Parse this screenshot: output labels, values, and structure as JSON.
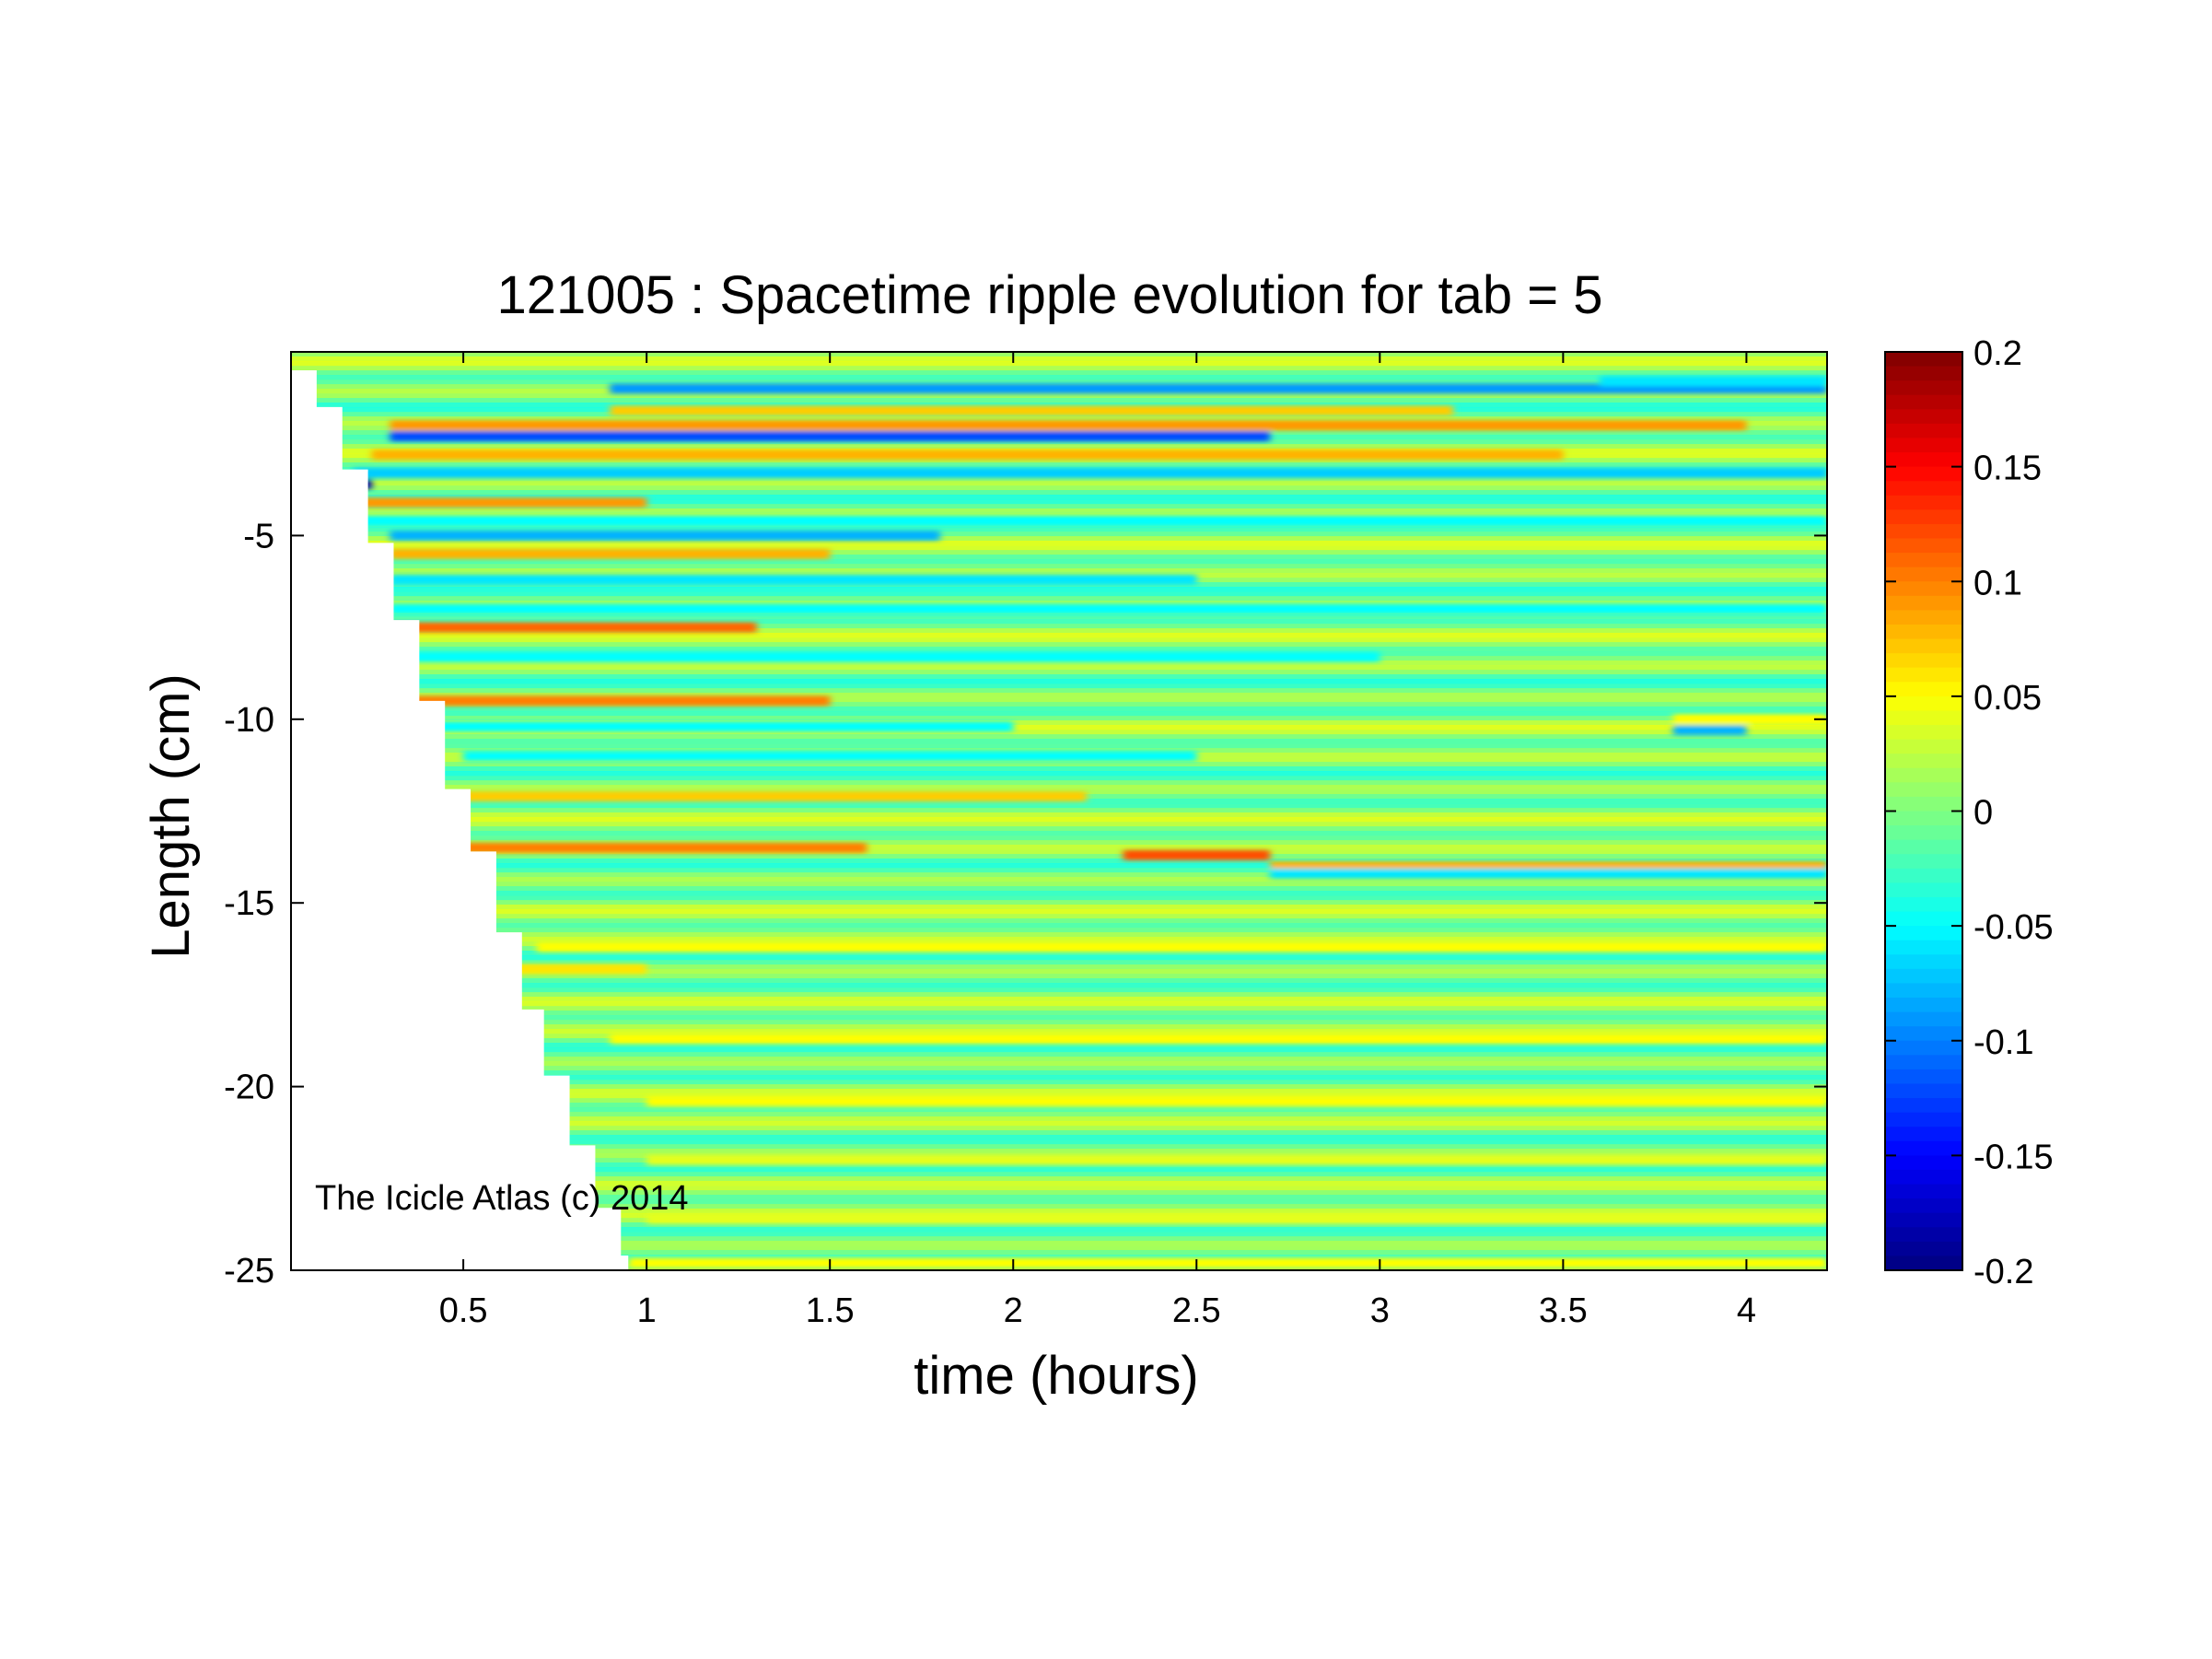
{
  "chart_data": {
    "type": "heatmap",
    "title": "121005 : Spacetime ripple evolution for tab = 5",
    "xlabel": "time (hours)",
    "ylabel": "Length (cm)",
    "annotation": "The Icicle Atlas (c) 2014",
    "xlim": [
      0.03,
      4.22
    ],
    "ylim": [
      -25,
      0
    ],
    "xticks": [
      0.5,
      1,
      1.5,
      2,
      2.5,
      3,
      3.5,
      4
    ],
    "xtick_labels": [
      "0.5",
      "1",
      "1.5",
      "2",
      "2.5",
      "3",
      "3.5",
      "4"
    ],
    "yticks": [
      -25,
      -20,
      -15,
      -10,
      -5
    ],
    "ytick_labels": [
      "-25",
      "-20",
      "-15",
      "-10",
      "-5"
    ],
    "colorbar": {
      "colormap": "jet",
      "clim": [
        -0.2,
        0.2
      ],
      "ticks": [
        0.2,
        0.15,
        0.1,
        0.05,
        0,
        -0.05,
        -0.1,
        -0.15,
        -0.2
      ],
      "tick_labels": [
        "0.2",
        "0.15",
        "0.1",
        "0.05",
        "0",
        "-0.05",
        "-0.1",
        "-0.15",
        "-0.2"
      ]
    },
    "grid": false,
    "growth_front": {
      "description_units": "time (hours) at which each icicle length first has data",
      "length": [
        -0.5,
        -1.5,
        -3.2,
        -5.2,
        -7.3,
        -9.5,
        -11.9,
        -13.6,
        -15.8,
        -17.9,
        -19.7,
        -21.6,
        -23.3,
        -24.6,
        -25
      ],
      "time": [
        0.03,
        0.1,
        0.17,
        0.24,
        0.31,
        0.38,
        0.45,
        0.52,
        0.59,
        0.66,
        0.72,
        0.79,
        0.86,
        0.93,
        0.95
      ]
    },
    "bands": [
      {
        "y": -1.0,
        "x0": 0.9,
        "x1": 4.22,
        "value": -0.09
      },
      {
        "y": -0.8,
        "x0": 3.6,
        "x1": 4.22,
        "value": -0.06
      },
      {
        "y": -1.6,
        "x0": 0.9,
        "x1": 3.2,
        "value": 0.07
      },
      {
        "y": -2.0,
        "x0": 0.3,
        "x1": 4.0,
        "value": 0.09
      },
      {
        "y": -2.3,
        "x0": 0.3,
        "x1": 2.7,
        "value": -0.12
      },
      {
        "y": -2.8,
        "x0": 0.25,
        "x1": 3.5,
        "value": 0.08
      },
      {
        "y": -3.3,
        "x0": 0.2,
        "x1": 4.22,
        "value": -0.07
      },
      {
        "y": -3.6,
        "x0": 0.15,
        "x1": 0.25,
        "value": -0.18
      },
      {
        "y": -4.1,
        "x0": 0.15,
        "x1": 1.0,
        "value": 0.09
      },
      {
        "y": -4.6,
        "x0": 0.2,
        "x1": 4.22,
        "value": -0.05
      },
      {
        "y": -5.0,
        "x0": 0.3,
        "x1": 1.8,
        "value": -0.08
      },
      {
        "y": -5.5,
        "x0": 0.3,
        "x1": 1.5,
        "value": 0.08
      },
      {
        "y": -6.2,
        "x0": 0.3,
        "x1": 2.5,
        "value": -0.06
      },
      {
        "y": -7.0,
        "x0": 0.3,
        "x1": 4.22,
        "value": -0.05
      },
      {
        "y": -7.5,
        "x0": 0.3,
        "x1": 1.3,
        "value": 0.11
      },
      {
        "y": -8.3,
        "x0": 0.35,
        "x1": 3.0,
        "value": -0.05
      },
      {
        "y": -9.5,
        "x0": 0.35,
        "x1": 1.5,
        "value": 0.1
      },
      {
        "y": -10.2,
        "x0": 0.4,
        "x1": 2.0,
        "value": -0.05
      },
      {
        "y": -10.0,
        "x0": 3.8,
        "x1": 4.22,
        "value": 0.05
      },
      {
        "y": -10.3,
        "x0": 3.8,
        "x1": 4.0,
        "value": -0.08
      },
      {
        "y": -11.0,
        "x0": 0.5,
        "x1": 2.5,
        "value": -0.05
      },
      {
        "y": -12.1,
        "x0": 0.5,
        "x1": 2.2,
        "value": 0.07
      },
      {
        "y": -13.5,
        "x0": 0.5,
        "x1": 1.6,
        "value": 0.1
      },
      {
        "y": -13.7,
        "x0": 2.3,
        "x1": 2.7,
        "value": 0.12
      },
      {
        "y": -14.0,
        "x0": 2.7,
        "x1": 4.22,
        "value": 0.08
      },
      {
        "y": -14.2,
        "x0": 2.7,
        "x1": 4.22,
        "value": -0.06
      },
      {
        "y": -16.2,
        "x0": 0.7,
        "x1": 4.22,
        "value": 0.05
      },
      {
        "y": -16.8,
        "x0": 0.6,
        "x1": 1.0,
        "value": 0.06
      },
      {
        "y": -18.7,
        "x0": 0.9,
        "x1": 4.22,
        "value": 0.05
      },
      {
        "y": -20.4,
        "x0": 1.0,
        "x1": 4.22,
        "value": 0.05
      },
      {
        "y": -22.0,
        "x0": 1.0,
        "x1": 4.22,
        "value": 0.04
      },
      {
        "y": -23.6,
        "x0": 1.0,
        "x1": 4.22,
        "value": 0.04
      },
      {
        "y": -24.8,
        "x0": 0.95,
        "x1": 4.22,
        "value": 0.05
      }
    ]
  }
}
